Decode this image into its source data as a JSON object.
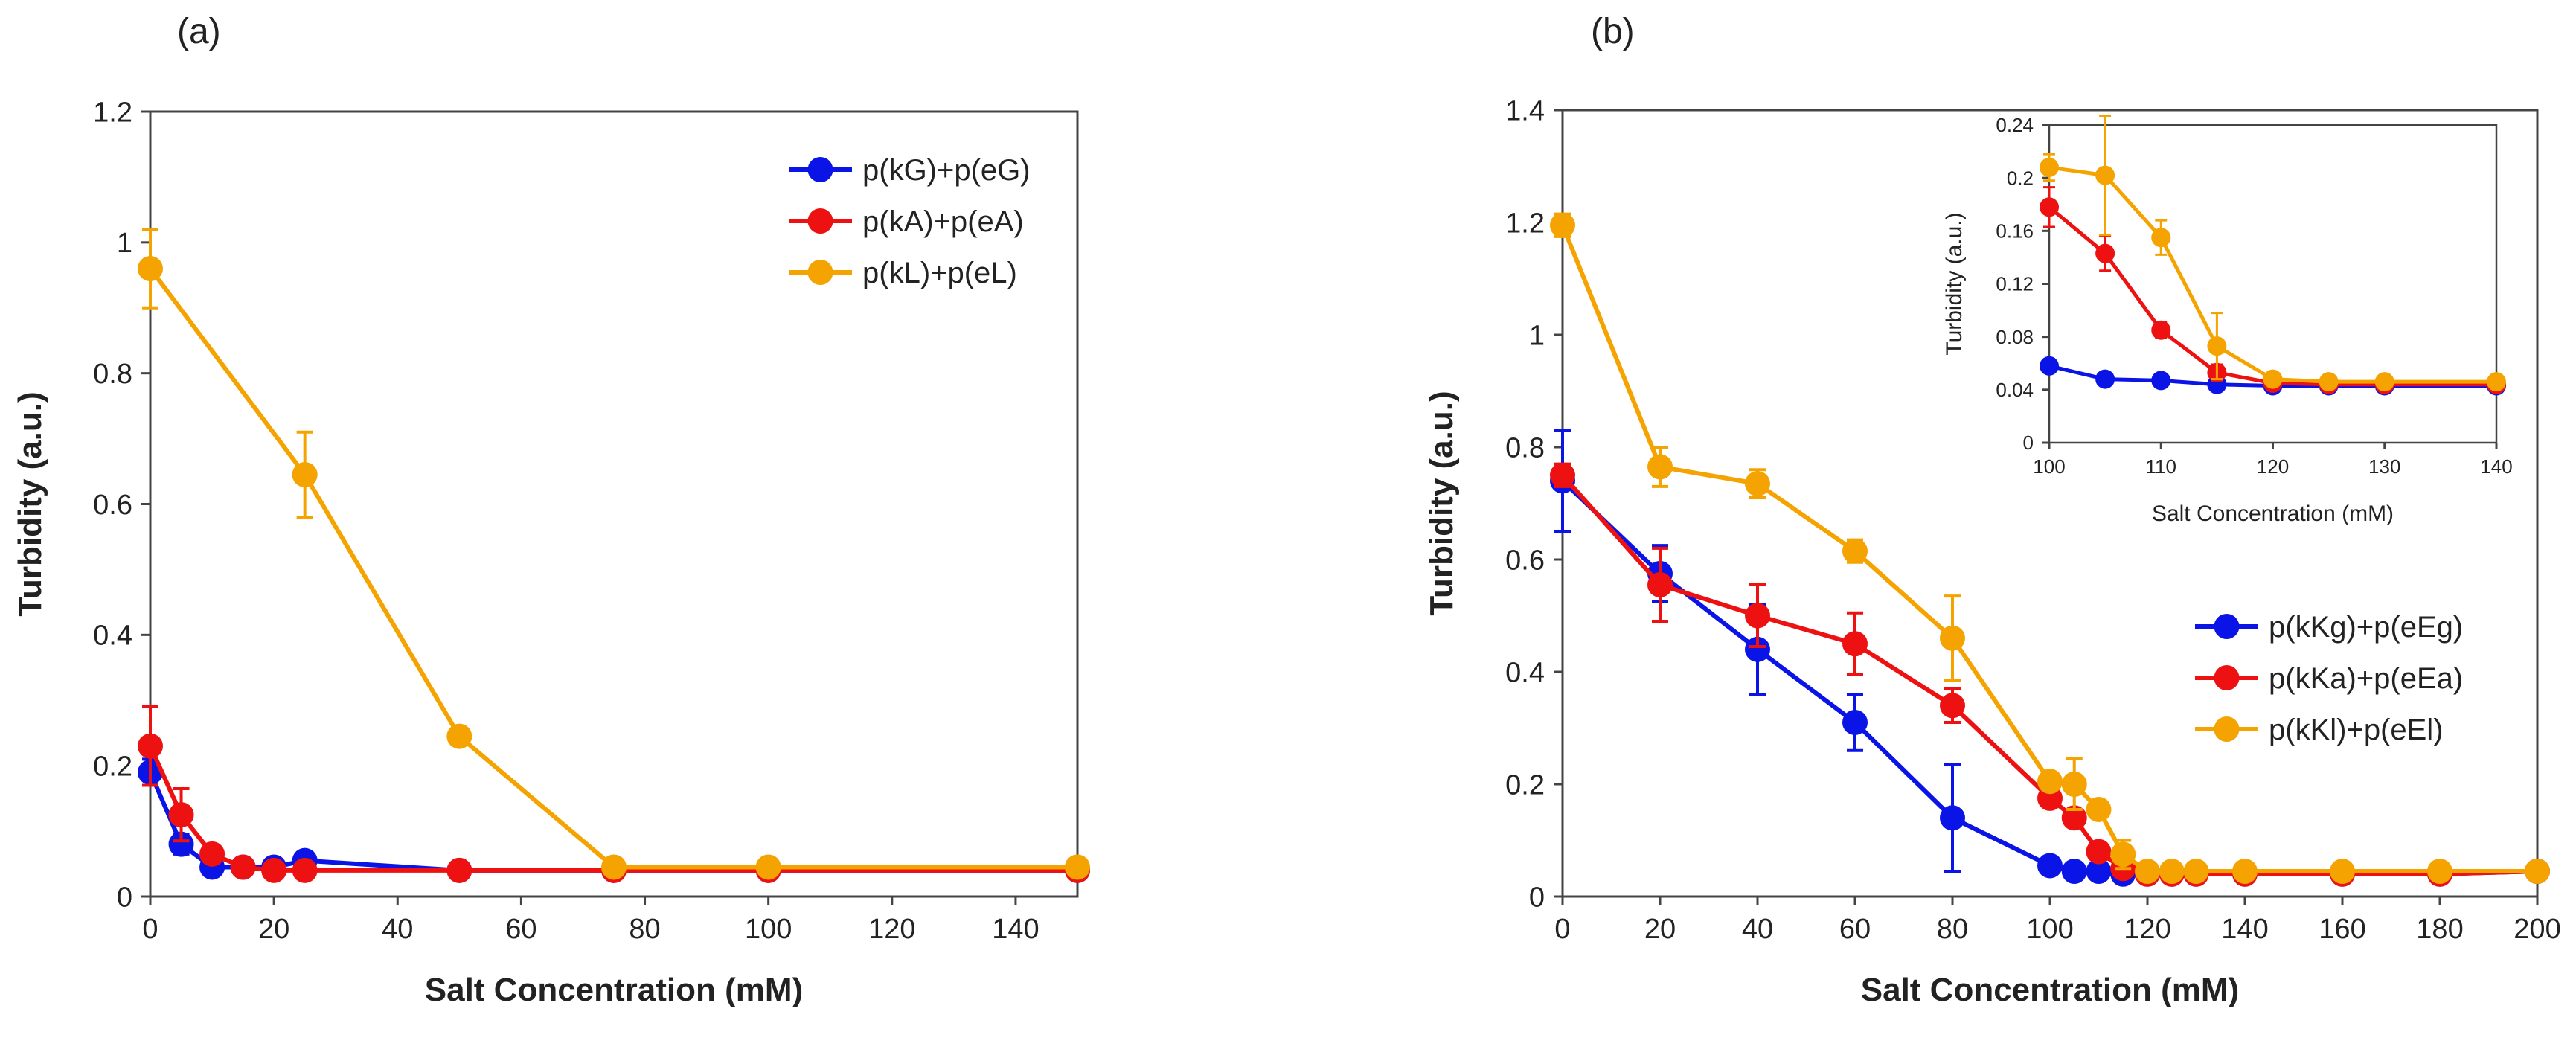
{
  "chart_data": [
    {
      "panel_label": "(a)",
      "type": "line",
      "xlabel": "Salt Concentration (mM)",
      "ylabel": "Turbidity (a.u.)",
      "xlim": [
        0,
        150
      ],
      "ylim": [
        0,
        1.2
      ],
      "xticks": [
        0,
        20,
        40,
        60,
        80,
        100,
        120,
        140
      ],
      "yticks": [
        0,
        0.2,
        0.4,
        0.6,
        0.8,
        1,
        1.2
      ],
      "xtick_labels": [
        "0",
        "20",
        "40",
        "60",
        "80",
        "100",
        "120",
        "140"
      ],
      "ytick_labels": [
        "0",
        "0.2",
        "0.4",
        "0.6",
        "0.8",
        "1",
        "1.2"
      ],
      "grid": false,
      "legend_position": "top-right",
      "series": [
        {
          "name": "p(kG)+p(eG)",
          "color": "#0a14e6",
          "x": [
            0,
            5,
            10,
            15,
            20,
            25,
            50,
            75,
            100,
            150
          ],
          "y": [
            0.19,
            0.08,
            0.045,
            0.045,
            0.045,
            0.055,
            0.04,
            0.04,
            0.04,
            0.04
          ],
          "err": [
            0.02,
            0.015,
            0.01,
            0.005,
            0.005,
            0.01,
            0.005,
            0.005,
            0.005,
            0.005
          ]
        },
        {
          "name": "p(kA)+p(eA)",
          "color": "#ee1111",
          "x": [
            0,
            5,
            10,
            15,
            20,
            25,
            50,
            75,
            100,
            150
          ],
          "y": [
            0.23,
            0.125,
            0.065,
            0.045,
            0.04,
            0.04,
            0.04,
            0.04,
            0.04,
            0.04
          ],
          "err": [
            0.06,
            0.04,
            0.01,
            0.005,
            0.005,
            0.005,
            0.005,
            0.005,
            0.005,
            0.005
          ]
        },
        {
          "name": "p(kL)+p(eL)",
          "color": "#f5a300",
          "x": [
            0,
            25,
            50,
            75,
            100,
            150
          ],
          "y": [
            0.96,
            0.645,
            0.245,
            0.045,
            0.045,
            0.045
          ],
          "err": [
            0.06,
            0.065,
            0.01,
            0.005,
            0.005,
            0.005
          ]
        }
      ]
    },
    {
      "panel_label": "(b)",
      "type": "line",
      "xlabel": "Salt Concentration (mM)",
      "ylabel": "Turbidity (a.u.)",
      "xlim": [
        0,
        200
      ],
      "ylim": [
        0,
        1.4
      ],
      "xticks": [
        0,
        20,
        40,
        60,
        80,
        100,
        120,
        140,
        160,
        180,
        200
      ],
      "yticks": [
        0,
        0.2,
        0.4,
        0.6,
        0.8,
        1,
        1.2,
        1.4
      ],
      "xtick_labels": [
        "0",
        "20",
        "40",
        "60",
        "80",
        "100",
        "120",
        "140",
        "160",
        "180",
        "200"
      ],
      "ytick_labels": [
        "0",
        "0.2",
        "0.4",
        "0.6",
        "0.8",
        "1",
        "1.2",
        "1.4"
      ],
      "grid": false,
      "legend_position": "bottom-right",
      "series": [
        {
          "name": "p(kKg)+p(eEg)",
          "color": "#0a14e6",
          "x": [
            0,
            20,
            40,
            60,
            80,
            100,
            105,
            110,
            115,
            120,
            125,
            130,
            140,
            160,
            180,
            200
          ],
          "y": [
            0.74,
            0.575,
            0.44,
            0.31,
            0.14,
            0.055,
            0.045,
            0.045,
            0.04,
            0.04,
            0.04,
            0.04,
            0.04,
            0.04,
            0.04,
            0.045
          ],
          "err": [
            0.09,
            0.05,
            0.08,
            0.05,
            0.095,
            0.005,
            0.005,
            0.005,
            0.005,
            0.005,
            0.005,
            0.005,
            0.005,
            0.005,
            0.005,
            0.005
          ]
        },
        {
          "name": "p(kKa)+p(eEa)",
          "color": "#ee1111",
          "x": [
            0,
            20,
            40,
            60,
            80,
            100,
            105,
            110,
            115,
            120,
            125,
            130,
            140,
            160,
            180,
            200
          ],
          "y": [
            0.75,
            0.555,
            0.5,
            0.45,
            0.34,
            0.175,
            0.14,
            0.08,
            0.05,
            0.04,
            0.04,
            0.04,
            0.04,
            0.04,
            0.04,
            0.045
          ],
          "err": [
            0.02,
            0.065,
            0.055,
            0.055,
            0.03,
            0.015,
            0.015,
            0.01,
            0.005,
            0.005,
            0.005,
            0.005,
            0.005,
            0.005,
            0.005,
            0.005
          ]
        },
        {
          "name": "p(kKl)+p(eEl)",
          "color": "#f5a300",
          "x": [
            0,
            20,
            40,
            60,
            80,
            100,
            105,
            110,
            115,
            120,
            125,
            130,
            140,
            160,
            180,
            200
          ],
          "y": [
            1.195,
            0.765,
            0.735,
            0.615,
            0.46,
            0.205,
            0.2,
            0.155,
            0.075,
            0.045,
            0.045,
            0.045,
            0.045,
            0.045,
            0.045,
            0.045
          ],
          "err": [
            0.02,
            0.035,
            0.025,
            0.02,
            0.075,
            0.005,
            0.045,
            0.015,
            0.025,
            0.005,
            0.005,
            0.005,
            0.005,
            0.005,
            0.005,
            0.005
          ]
        }
      ]
    },
    {
      "panel_label": "inset",
      "type": "line",
      "xlabel": "Salt Concentration (mM)",
      "ylabel": "Turbidity (a.u.)",
      "xlim": [
        100,
        140
      ],
      "ylim": [
        0,
        0.24
      ],
      "xticks": [
        100,
        110,
        120,
        130,
        140
      ],
      "yticks": [
        0,
        0.04,
        0.08,
        0.12,
        0.16,
        0.2,
        0.24
      ],
      "xtick_labels": [
        "100",
        "110",
        "120",
        "130",
        "140"
      ],
      "ytick_labels": [
        "0",
        "0.04",
        "0.08",
        "0.12",
        "0.16",
        "0.2",
        "0.24"
      ],
      "grid": false,
      "series": [
        {
          "name": "p(kKg)+p(eEg)",
          "color": "#0a14e6",
          "x": [
            100,
            105,
            110,
            115,
            120,
            125,
            130,
            140
          ],
          "y": [
            0.058,
            0.048,
            0.047,
            0.044,
            0.043,
            0.043,
            0.043,
            0.043
          ],
          "err": [
            0.005,
            0.003,
            0.003,
            0.003,
            0.003,
            0.003,
            0.003,
            0.003
          ]
        },
        {
          "name": "p(kKa)+p(eEa)",
          "color": "#ee1111",
          "x": [
            100,
            105,
            110,
            115,
            120,
            125,
            130,
            140
          ],
          "y": [
            0.178,
            0.143,
            0.085,
            0.053,
            0.045,
            0.044,
            0.044,
            0.044
          ],
          "err": [
            0.015,
            0.013,
            0.006,
            0.006,
            0.003,
            0.003,
            0.003,
            0.003
          ]
        },
        {
          "name": "p(kKl)+p(eEl)",
          "color": "#f5a300",
          "x": [
            100,
            105,
            110,
            115,
            120,
            125,
            130,
            140
          ],
          "y": [
            0.208,
            0.202,
            0.155,
            0.073,
            0.048,
            0.046,
            0.046,
            0.046
          ],
          "err": [
            0.01,
            0.045,
            0.013,
            0.025,
            0.004,
            0.003,
            0.003,
            0.003
          ]
        }
      ]
    }
  ]
}
